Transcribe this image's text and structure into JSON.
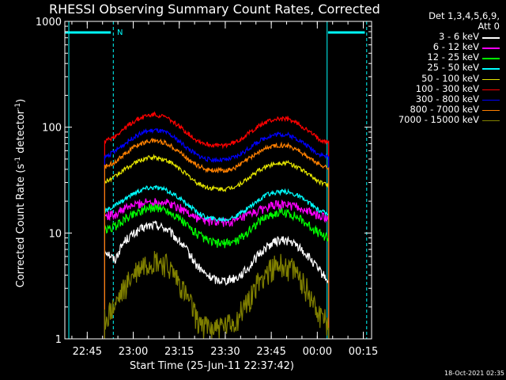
{
  "chart_data": {
    "type": "line",
    "title": "RHESSI Observing Summary Count Rates, Corrected",
    "xlabel": "Start Time (25-Jun-11 22:37:42)",
    "ylabel_main": "Corrected Count Rate (s",
    "ylabel_sup1": "-1",
    "ylabel_mid": " detector",
    "ylabel_sup2": "-1",
    "ylabel_end": ")",
    "yscale": "log",
    "ylim": [
      1,
      1000
    ],
    "xlim_minutes": [
      0,
      100
    ],
    "y_ticks": [
      "1",
      "10",
      "100",
      "1000"
    ],
    "x_ticks": [
      {
        "label": "22:45",
        "min": 7.3
      },
      {
        "label": "23:00",
        "min": 22.3
      },
      {
        "label": "23:15",
        "min": 37.3
      },
      {
        "label": "23:30",
        "min": 52.3
      },
      {
        "label": "23:45",
        "min": 67.3
      },
      {
        "label": "00:00",
        "min": 82.3
      },
      {
        "label": "00:15",
        "min": 97.3
      }
    ],
    "legend_header": [
      "Det 1,3,4,5,6,9,",
      "Att 0"
    ],
    "flag_label": "N",
    "data_window_min": [
      13,
      86
    ],
    "series": [
      {
        "name": "3 - 6 keV",
        "color": "#ffffff",
        "values": [
          7.0,
          5.5,
          8.5,
          10,
          11.5,
          12,
          11,
          9,
          7,
          5,
          4,
          3.6,
          3.6,
          3.8,
          4.5,
          6,
          7.5,
          8.5,
          8.5,
          7.5,
          6,
          4.5,
          3.5
        ]
      },
      {
        "name": "6 - 12 keV",
        "color": "#ff00ff",
        "values": [
          14.5,
          15,
          17,
          18.5,
          19.5,
          20,
          19.5,
          18,
          16,
          14,
          13,
          12.6,
          12.6,
          13,
          14.5,
          16,
          17.5,
          18.5,
          18.5,
          17.5,
          16,
          14.5,
          14
        ]
      },
      {
        "name": "12 - 25 keV",
        "color": "#00ff00",
        "values": [
          10.5,
          11.5,
          13.5,
          15.5,
          17,
          17.5,
          16.5,
          14.5,
          12,
          10,
          8.5,
          8,
          8,
          8.5,
          10,
          12.5,
          14.5,
          15.5,
          15.5,
          14,
          12,
          10,
          9
        ]
      },
      {
        "name": "25 - 50 keV",
        "color": "#00ffff",
        "values": [
          16,
          18,
          21,
          24,
          26.5,
          27,
          25.5,
          22.5,
          19,
          16,
          14,
          13.5,
          13.5,
          14.5,
          17,
          20,
          23,
          24.5,
          24.5,
          22.5,
          19.5,
          16.5,
          15
        ]
      },
      {
        "name": "50 - 100 keV",
        "color": "#e6e600",
        "values": [
          30,
          34,
          40,
          46,
          51,
          52,
          49,
          43,
          36,
          30,
          27,
          26,
          26,
          28,
          32,
          38,
          43,
          46,
          46,
          42,
          36,
          31,
          28
        ]
      },
      {
        "name": "100 - 300 keV",
        "color": "#ff0000",
        "values": [
          73,
          82,
          98,
          115,
          128,
          132,
          124,
          108,
          90,
          76,
          69,
          67,
          68,
          73,
          85,
          100,
          113,
          120,
          119,
          108,
          92,
          78,
          72
        ]
      },
      {
        "name": "300 - 800 keV",
        "color": "#0000ff",
        "values": [
          52,
          59,
          70,
          82,
          91,
          94,
          89,
          78,
          65,
          55,
          50,
          49,
          49,
          53,
          61,
          72,
          81,
          86,
          85,
          77,
          66,
          56,
          52
        ]
      },
      {
        "name": "800 - 7000 keV",
        "color": "#ff8000",
        "values": [
          42,
          47,
          56,
          66,
          73,
          75,
          71,
          62,
          52,
          44,
          40,
          39,
          39,
          42,
          49,
          57,
          64,
          68,
          67,
          61,
          52,
          45,
          41
        ]
      },
      {
        "name": "7000 - 15000 keV",
        "color": "#808000",
        "values": [
          1.5,
          2.0,
          3.0,
          4.2,
          5.2,
          5.5,
          5.0,
          3.8,
          2.5,
          1.6,
          1.3,
          1.3,
          1.3,
          1.5,
          2.2,
          3.3,
          4.4,
          5.0,
          4.9,
          4.0,
          2.8,
          1.8,
          1.4
        ]
      }
    ],
    "series_x_min": [
      13,
      16.3,
      19.6,
      22.9,
      26.3,
      29.6,
      32.9,
      36.2,
      39.5,
      42.8,
      46.1,
      49.5,
      52.8,
      56.1,
      59.4,
      62.7,
      66,
      69.3,
      72.6,
      76,
      79.3,
      82.6,
      86
    ],
    "timestamp": "18-Oct-2021 02:35"
  }
}
